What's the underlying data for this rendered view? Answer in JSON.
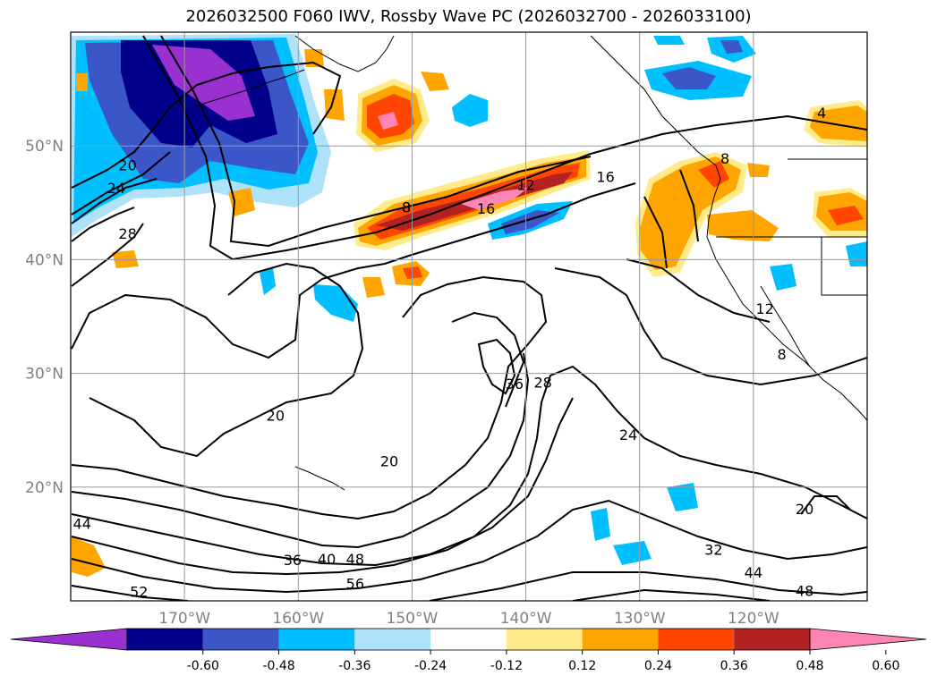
{
  "title": "2026032500 F060 IWV, Rossby Wave PC (2026032700 - 2026033100)",
  "map": {
    "lon_range": [
      -180,
      -110
    ],
    "lat_range": [
      10,
      60
    ],
    "lat_ticks": [
      {
        "value": 50,
        "label": "50°N"
      },
      {
        "value": 40,
        "label": "40°N"
      },
      {
        "value": 30,
        "label": "30°N"
      },
      {
        "value": 20,
        "label": "20°N"
      }
    ],
    "lon_ticks": [
      {
        "value": -170,
        "label": "170°W"
      },
      {
        "value": -160,
        "label": "160°W"
      },
      {
        "value": -150,
        "label": "150°W"
      },
      {
        "value": -140,
        "label": "140°W"
      },
      {
        "value": -130,
        "label": "130°W"
      },
      {
        "value": -120,
        "label": "120°W"
      }
    ],
    "grid": true,
    "contour_labels": [
      {
        "text": "20",
        "lon": -175,
        "lat": 48
      },
      {
        "text": "24",
        "lon": -176,
        "lat": 46
      },
      {
        "text": "28",
        "lon": -175,
        "lat": 42
      },
      {
        "text": "8",
        "lon": -150.5,
        "lat": 44.3
      },
      {
        "text": "12",
        "lon": -140,
        "lat": 46.3
      },
      {
        "text": "16",
        "lon": -143.5,
        "lat": 44.2
      },
      {
        "text": "16",
        "lon": -133,
        "lat": 47
      },
      {
        "text": "4",
        "lon": -114,
        "lat": 52.6
      },
      {
        "text": "8",
        "lon": -122.5,
        "lat": 48.6
      },
      {
        "text": "12",
        "lon": -119,
        "lat": 35.4
      },
      {
        "text": "8",
        "lon": -117.5,
        "lat": 31.4
      },
      {
        "text": "36",
        "lon": -141,
        "lat": 28.8
      },
      {
        "text": "28",
        "lon": -138.5,
        "lat": 28.9
      },
      {
        "text": "24",
        "lon": -131,
        "lat": 24.3
      },
      {
        "text": "20",
        "lon": -162,
        "lat": 26
      },
      {
        "text": "20",
        "lon": -152,
        "lat": 22
      },
      {
        "text": "20",
        "lon": -115.5,
        "lat": 17.8
      },
      {
        "text": "32",
        "lon": -123.5,
        "lat": 14.2
      },
      {
        "text": "44",
        "lon": -120,
        "lat": 12.2
      },
      {
        "text": "48",
        "lon": -115.5,
        "lat": 10.6
      },
      {
        "text": "44",
        "lon": -179,
        "lat": 16.5
      },
      {
        "text": "36",
        "lon": -160.5,
        "lat": 13.3
      },
      {
        "text": "40",
        "lon": -157.5,
        "lat": 13.4
      },
      {
        "text": "48",
        "lon": -155,
        "lat": 13.4
      },
      {
        "text": "56",
        "lon": -155,
        "lat": 11.2
      },
      {
        "text": "52",
        "lon": -174,
        "lat": 10.5
      }
    ]
  },
  "colorbar": {
    "ticks": [
      "-0.60",
      "-0.48",
      "-0.36",
      "-0.24",
      "-0.12",
      "0.12",
      "0.24",
      "0.36",
      "0.48",
      "0.60"
    ],
    "colors": [
      "#9b30d0",
      "#00008b",
      "#3a56c7",
      "#00bfff",
      "#aee2fa",
      "#ffffff",
      "#ffeb8a",
      "#ffa500",
      "#ff4500",
      "#b22222",
      "#ff86b4"
    ],
    "extend": "both"
  }
}
